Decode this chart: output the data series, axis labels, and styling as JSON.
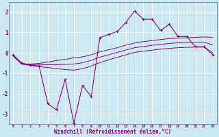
{
  "xlabel": "Windchill (Refroidissement éolien,°C)",
  "background_color": "#cce8f0",
  "line_color": "#880088",
  "grid_color": "#ffffff",
  "x_data": [
    0,
    1,
    2,
    3,
    4,
    5,
    6,
    7,
    8,
    9,
    10,
    11,
    12,
    13,
    14,
    15,
    16,
    17,
    18,
    19,
    20,
    21,
    22,
    23
  ],
  "y_main": [
    -0.1,
    -0.5,
    -0.6,
    -0.65,
    -2.5,
    -2.8,
    -1.3,
    -3.45,
    -1.6,
    -2.15,
    0.75,
    0.9,
    1.05,
    1.5,
    2.05,
    1.65,
    1.65,
    1.1,
    1.4,
    0.8,
    0.8,
    0.3,
    0.3,
    -0.1
  ],
  "y_upper": [
    -0.15,
    -0.55,
    -0.55,
    -0.52,
    -0.45,
    -0.38,
    -0.32,
    -0.25,
    -0.2,
    -0.1,
    0.05,
    0.15,
    0.25,
    0.38,
    0.48,
    0.55,
    0.6,
    0.65,
    0.7,
    0.72,
    0.74,
    0.76,
    0.78,
    0.76
  ],
  "y_lower": [
    -0.15,
    -0.55,
    -0.62,
    -0.68,
    -0.72,
    -0.78,
    -0.82,
    -0.85,
    -0.78,
    -0.65,
    -0.48,
    -0.35,
    -0.22,
    -0.1,
    0.02,
    0.08,
    0.13,
    0.18,
    0.22,
    0.25,
    0.27,
    0.28,
    0.28,
    0.0
  ],
  "y_mid": [
    -0.15,
    -0.55,
    -0.58,
    -0.6,
    -0.58,
    -0.58,
    -0.57,
    -0.55,
    -0.49,
    -0.37,
    -0.21,
    -0.1,
    0.02,
    0.14,
    0.25,
    0.31,
    0.37,
    0.41,
    0.46,
    0.49,
    0.51,
    0.52,
    0.53,
    0.38
  ],
  "ylim": [
    -3.5,
    2.5
  ],
  "xlim": [
    -0.5,
    23.5
  ],
  "yticks": [
    -3,
    -2,
    -1,
    0,
    1,
    2
  ],
  "xticks": [
    0,
    1,
    2,
    3,
    4,
    5,
    6,
    7,
    8,
    9,
    10,
    11,
    12,
    13,
    14,
    15,
    16,
    17,
    18,
    19,
    20,
    21,
    22,
    23
  ]
}
